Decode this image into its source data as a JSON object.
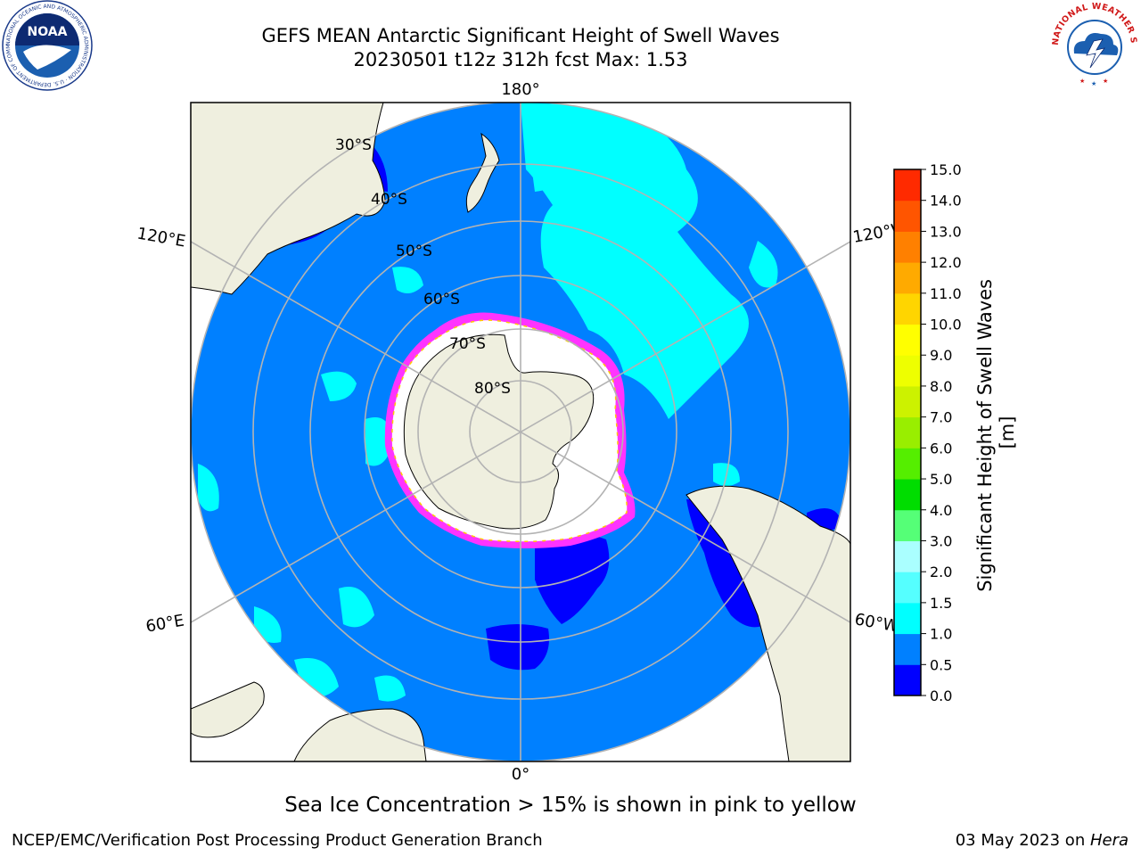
{
  "title": {
    "line1": "GEFS MEAN Antarctic Significant Height of Swell Waves",
    "line2": "20230501 t12z 312h fcst   Max: 1.53"
  },
  "logos": {
    "left": {
      "name": "noaa-logo",
      "text": "NOAA",
      "ring_text": "NATIONAL OCEANIC AND ATMOSPHERIC ADMINISTRATION · U.S. DEPARTMENT OF COMMERCE"
    },
    "right": {
      "name": "nws-logo",
      "ring_text": "NATIONAL WEATHER SERVICE"
    }
  },
  "map": {
    "projection": "south polar stereographic",
    "longitude_labels": {
      "top": "180°",
      "bottom": "0°",
      "left_upper": "120°E",
      "left_lower": "60°E",
      "right_upper": "120°W",
      "right_lower": "60°W"
    },
    "latitude_labels": [
      "30°S",
      "40°S",
      "50°S",
      "60°S",
      "70°S",
      "80°S"
    ],
    "colors": {
      "ocean_base": "#0080ff",
      "land": "#efefdf",
      "ice_fill": "#ffffff",
      "ice_edge": "#ff33ff",
      "low_swell": "#0000ff",
      "mid_swell": "#00ffff",
      "gridline": "#b3b3b3"
    }
  },
  "colorbar": {
    "label": "Significant Height of Swell Waves [m]",
    "ticks": [
      "0.0",
      "0.5",
      "1.0",
      "1.5",
      "2.0",
      "3.0",
      "4.0",
      "5.0",
      "6.0",
      "7.0",
      "8.0",
      "9.0",
      "10.0",
      "11.0",
      "12.0",
      "13.0",
      "14.0",
      "15.0"
    ],
    "colors": [
      "#0000ff",
      "#0080ff",
      "#00ffff",
      "#55ffff",
      "#aaffff",
      "#55ff77",
      "#00dd00",
      "#55ee00",
      "#99ee00",
      "#ccf200",
      "#eeff00",
      "#ffff00",
      "#ffd500",
      "#ffaa00",
      "#ff8000",
      "#ff5500",
      "#ff2a00"
    ]
  },
  "footer": {
    "ice_note": "Sea Ice Concentration > 15% is shown in pink to yellow",
    "credit": "NCEP/EMC/Verification Post Processing Product Generation Branch",
    "date_prefix": "03 May 2023 on ",
    "machine": "Hera"
  }
}
